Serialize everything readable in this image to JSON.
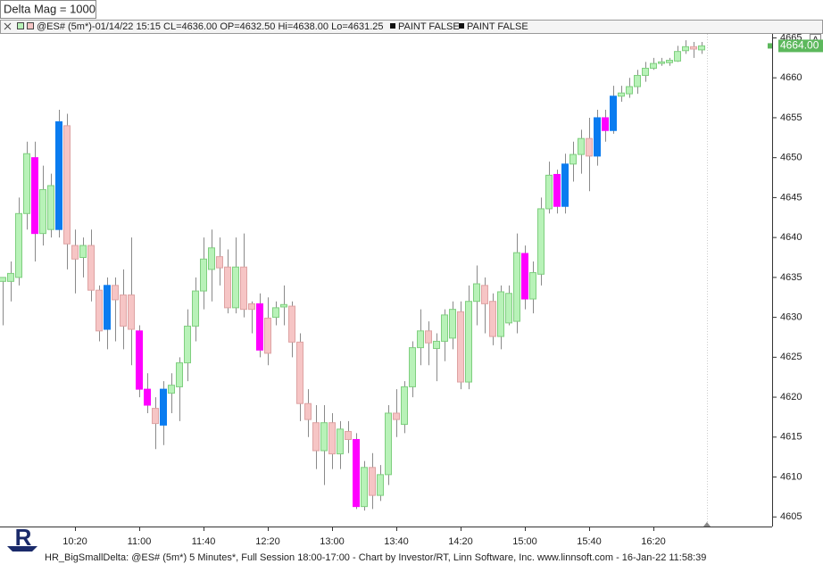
{
  "top_label": "Delta Mag = 1000",
  "header": {
    "symbol_info": "@ES# (5m*)-01/14/22 15:15 CL=4636.00 OP=4632.50 Hi=4638.00 Lo=4631.25",
    "paint_labels": [
      "PAINT FALSE",
      "PAINT FALSE"
    ],
    "button": "A"
  },
  "footer": "HR_BigSmallDelta: @ES# (5m*) 5 Minutes*, Full Session 18:00-17:00 - Chart by Investor/RT, Linn Software, Inc. www.linnsoft.com - 16-Jan-22 11:58:39",
  "logo": "R",
  "chart_data": {
    "type": "candlestick",
    "categories": [
      null,
      null,
      null,
      null,
      null,
      null,
      null,
      null,
      null,
      "10:20",
      null,
      null,
      null,
      null,
      null,
      null,
      null,
      "11:00",
      null,
      null,
      null,
      null,
      null,
      null,
      null,
      "11:40",
      null,
      null,
      null,
      null,
      null,
      null,
      null,
      "12:20",
      null,
      null,
      null,
      null,
      null,
      null,
      null,
      "13:00",
      null,
      null,
      null,
      null,
      null,
      null,
      null,
      "13:40",
      null,
      null,
      null,
      null,
      null,
      null,
      null,
      "14:20",
      null,
      null,
      null,
      null,
      null,
      null,
      null,
      "15:00",
      null,
      null,
      null,
      null,
      null,
      null,
      null,
      "15:40",
      null,
      null,
      null,
      null,
      null,
      null,
      null,
      "16:20",
      null,
      null,
      null,
      null,
      null,
      null
    ],
    "open": [
      4634.5,
      4634.5,
      4635,
      4643,
      4650,
      4640.5,
      4641,
      4641,
      4654,
      4639,
      4637.5,
      4639,
      4633.4,
      4628.5,
      4634,
      4632.8,
      4632.8,
      4628.3,
      4621,
      4618.6,
      4616.5,
      4620.5,
      4621.3,
      4624.3,
      4628.9,
      4633.3,
      4636,
      4637.6,
      4636.3,
      4631.2,
      4636.3,
      4631.7,
      4631.7,
      4629.9,
      4630,
      4631.3,
      4631.4,
      4626.9,
      4619.2,
      4616.8,
      4613.3,
      4616.8,
      4612.9,
      4615.7,
      4614.7,
      4606.3,
      4611.2,
      4607.7,
      4610.3,
      4618,
      4616.6,
      4621.3,
      4626.2,
      4628.3,
      4626.1,
      4627,
      4627.4,
      4630.7,
      4621.9,
      4632,
      4634,
      4632,
      4627.6,
      4629.3,
      4629.5,
      4638,
      4632.3,
      4635.4,
      4643.6,
      4647.9,
      4643.9,
      4649.2,
      4650.4,
      4652.4,
      4650.2,
      4655,
      4653.4,
      4657.7,
      4658,
      4658.9,
      4660.3,
      4661.2,
      4661.8,
      4661.9,
      4662.1,
      4663.4,
      4663.9,
      4663.5
    ],
    "high": [
      4635,
      4637,
      4645,
      4652,
      4652,
      4649,
      4648,
      4656,
      4655.5,
      4641,
      4640,
      4641,
      4634,
      4635,
      4635,
      4636,
      4640,
      4629,
      4623,
      4620,
      4622,
      4623,
      4625,
      4631,
      4635,
      4640,
      4641,
      4640,
      4638.5,
      4640,
      4640.5,
      4632,
      4633,
      4632.5,
      4632,
      4634,
      4632,
      4628,
      4621,
      4619,
      4619,
      4618,
      4617,
      4617,
      4615.5,
      4612,
      4613,
      4611.5,
      4619,
      4621,
      4622,
      4627,
      4631,
      4629.5,
      4628,
      4631,
      4632,
      4632,
      4634,
      4636.5,
      4635,
      4633,
      4634,
      4634,
      4640.5,
      4639,
      4637,
      4645,
      4649.5,
      4648.5,
      4650.5,
      4652,
      4653.5,
      4655,
      4656,
      4656,
      4659,
      4659,
      4660,
      4661,
      4662,
      4662.5,
      4662.5,
      4662.5,
      4664,
      4664.7,
      4664.5,
      4664.5
    ],
    "low": [
      4629,
      4632,
      4634,
      4641,
      4637,
      4639,
      4640,
      4640,
      4636,
      4633,
      4635,
      4632,
      4627,
      4626,
      4627,
      4626,
      4624,
      4620,
      4618,
      4613.5,
      4614,
      4618,
      4617,
      4622,
      4627,
      4631,
      4632,
      4634,
      4630.5,
      4630.5,
      4630,
      4628,
      4625,
      4624,
      4629,
      4629,
      4625,
      4617,
      4615,
      4611,
      4609,
      4611,
      4611,
      4613,
      4606,
      4605.8,
      4606,
      4607,
      4609,
      4615,
      4615.5,
      4620,
      4624,
      4624,
      4622,
      4624.5,
      4626,
      4621,
      4621,
      4629,
      4628,
      4626.5,
      4626,
      4629,
      4628,
      4631,
      4630.5,
      4634,
      4643,
      4643,
      4643,
      4647,
      4648,
      4645.8,
      4649,
      4652,
      4653,
      4657,
      4657.5,
      4658,
      4659.5,
      4661,
      4661.5,
      4661.5,
      4662,
      4663,
      4662.5,
      4663
    ],
    "close": [
      4635,
      4635.5,
      4643,
      4650.5,
      4640.5,
      4646,
      4646.5,
      4654.5,
      4639.2,
      4637.3,
      4639,
      4633.4,
      4628.3,
      4634,
      4632.2,
      4628.9,
      4628.5,
      4621,
      4619,
      4616.7,
      4621,
      4621.5,
      4624.3,
      4628.9,
      4633.3,
      4637.3,
      4638.7,
      4636.2,
      4631.2,
      4636.3,
      4631,
      4631,
      4625.9,
      4625.5,
      4631.2,
      4631.6,
      4626.9,
      4619.2,
      4617.2,
      4613.3,
      4616.8,
      4612.9,
      4616,
      4614.7,
      4606.3,
      4611.2,
      4607.7,
      4610.3,
      4618,
      4617.2,
      4621.3,
      4626.2,
      4628.3,
      4626.8,
      4627,
      4630.3,
      4631,
      4621.9,
      4632,
      4634.2,
      4631.7,
      4627.6,
      4633.2,
      4633,
      4638.1,
      4632.3,
      4635.6,
      4643.6,
      4647.8,
      4643.9,
      4649.2,
      4650.4,
      4652.4,
      4650.2,
      4655,
      4653.4,
      4657.7,
      4658.1,
      4658.9,
      4660.3,
      4661.2,
      4661.8,
      4662,
      4662.2,
      4663.3,
      4663.9,
      4663.6,
      4664
    ],
    "colors": [
      "#b8f2b8",
      "#b8f2b8",
      "#b8f2b8",
      "#b8f2b8",
      "#ff00ff",
      "#b8f2b8",
      "#b8f2b8",
      "#0a7cf0",
      "#f6c5c5",
      "#f6c5c5",
      "#b8f2b8",
      "#f6c5c5",
      "#f6c5c5",
      "#0a7cf0",
      "#f6c5c5",
      "#f6c5c5",
      "#f6c5c5",
      "#ff00ff",
      "#ff00ff",
      "#f6c5c5",
      "#0a7cf0",
      "#b8f2b8",
      "#b8f2b8",
      "#b8f2b8",
      "#b8f2b8",
      "#b8f2b8",
      "#b8f2b8",
      "#f6c5c5",
      "#f6c5c5",
      "#b8f2b8",
      "#f6c5c5",
      "#f6c5c5",
      "#ff00ff",
      "#f6c5c5",
      "#b8f2b8",
      "#b8f2b8",
      "#f6c5c5",
      "#f6c5c5",
      "#f6c5c5",
      "#f6c5c5",
      "#b8f2b8",
      "#f6c5c5",
      "#b8f2b8",
      "#f6c5c5",
      "#ff00ff",
      "#b8f2b8",
      "#f6c5c5",
      "#b8f2b8",
      "#b8f2b8",
      "#f6c5c5",
      "#b8f2b8",
      "#b8f2b8",
      "#b8f2b8",
      "#f6c5c5",
      "#b8f2b8",
      "#b8f2b8",
      "#b8f2b8",
      "#f6c5c5",
      "#b8f2b8",
      "#b8f2b8",
      "#f6c5c5",
      "#f6c5c5",
      "#b8f2b8",
      "#b8f2b8",
      "#b8f2b8",
      "#ff00ff",
      "#b8f2b8",
      "#b8f2b8",
      "#b8f2b8",
      "#ff00ff",
      "#0a7cf0",
      "#b8f2b8",
      "#b8f2b8",
      "#f6c5c5",
      "#0a7cf0",
      "#ff00ff",
      "#0a7cf0",
      "#b8f2b8",
      "#b8f2b8",
      "#b8f2b8",
      "#b8f2b8",
      "#b8f2b8",
      "#b8f2b8",
      "#b8f2b8",
      "#b8f2b8",
      "#b8f2b8",
      "#f6c5c5",
      "#b8f2b8"
    ],
    "wick_color": "#8a8a8a",
    "ylim": [
      4603.8,
      4665.5
    ],
    "yticks": [
      4605,
      4610,
      4615,
      4620,
      4625,
      4630,
      4635,
      4640,
      4645,
      4650,
      4655,
      4660,
      4665
    ],
    "grid": false,
    "last_price": {
      "value": 4664,
      "label": "4664.00"
    },
    "last_price_color": "#5cb85c"
  }
}
